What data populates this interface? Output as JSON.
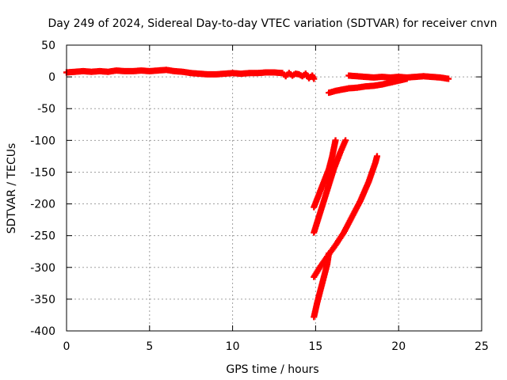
{
  "chart_data": {
    "type": "scatter",
    "title": "Day 249 of 2024, Sidereal Day-to-day VTEC variation (SDTVAR) for receiver cnvn",
    "xlabel": "GPS time / hours",
    "ylabel": "SDTVAR / TECUs",
    "xlim": [
      0,
      25
    ],
    "ylim": [
      -400,
      50
    ],
    "x_ticks": [
      0,
      5,
      10,
      15,
      20,
      25
    ],
    "y_ticks": [
      50,
      0,
      -50,
      -100,
      -150,
      -200,
      -250,
      -300,
      -350,
      -400
    ],
    "x_tick_labels": [
      "0",
      "5",
      "10",
      "15",
      "20",
      "25"
    ],
    "y_tick_labels": [
      "50",
      "0",
      "-50",
      "-100",
      "-150",
      "-200",
      "-250",
      "-300",
      "-350",
      "-400"
    ],
    "grid": true,
    "legend": "none",
    "marker_color": "#ff0000",
    "series": [
      {
        "points": [
          [
            0.0,
            7
          ],
          [
            0.5,
            8
          ],
          [
            1.0,
            9
          ],
          [
            1.5,
            8
          ],
          [
            2.0,
            9
          ],
          [
            2.5,
            8
          ],
          [
            3.0,
            10
          ],
          [
            3.5,
            9
          ],
          [
            4.0,
            9
          ],
          [
            4.5,
            10
          ],
          [
            5.0,
            9
          ],
          [
            5.5,
            10
          ],
          [
            6.0,
            11
          ],
          [
            6.5,
            9
          ],
          [
            7.0,
            8
          ],
          [
            7.5,
            6
          ],
          [
            8.0,
            5
          ],
          [
            8.5,
            4
          ],
          [
            9.0,
            4
          ],
          [
            9.5,
            5
          ],
          [
            10.0,
            6
          ],
          [
            10.5,
            5
          ],
          [
            11.0,
            6
          ],
          [
            11.5,
            6
          ],
          [
            12.0,
            7
          ],
          [
            12.5,
            7
          ],
          [
            13.0,
            6
          ],
          [
            13.2,
            1
          ],
          [
            13.4,
            6
          ],
          [
            13.6,
            2
          ],
          [
            13.8,
            5
          ],
          [
            14.0,
            4
          ],
          [
            14.2,
            1
          ],
          [
            14.4,
            5
          ],
          [
            14.6,
            -2
          ],
          [
            14.8,
            2
          ],
          [
            14.9,
            -3
          ]
        ]
      },
      {
        "points": [
          [
            15.8,
            -25
          ],
          [
            16.2,
            -22
          ],
          [
            16.6,
            -20
          ],
          [
            17.0,
            -18
          ],
          [
            17.5,
            -17
          ],
          [
            18.0,
            -15
          ],
          [
            18.5,
            -14
          ],
          [
            19.0,
            -12
          ],
          [
            19.5,
            -9
          ],
          [
            20.0,
            -6
          ],
          [
            20.5,
            -3
          ]
        ]
      },
      {
        "points": [
          [
            17.0,
            2
          ],
          [
            17.5,
            1
          ],
          [
            18.0,
            0
          ],
          [
            18.5,
            -1
          ],
          [
            19.0,
            0
          ],
          [
            19.5,
            -1
          ],
          [
            20.0,
            0
          ],
          [
            20.5,
            -1
          ],
          [
            21.0,
            0
          ],
          [
            21.5,
            1
          ],
          [
            22.0,
            0
          ],
          [
            22.5,
            -1
          ],
          [
            23.0,
            -3
          ]
        ]
      },
      {
        "points": [
          [
            14.9,
            -205
          ],
          [
            15.2,
            -185
          ],
          [
            15.5,
            -165
          ],
          [
            15.8,
            -145
          ],
          [
            16.0,
            -125
          ],
          [
            16.2,
            -100
          ]
        ]
      },
      {
        "points": [
          [
            14.9,
            -245
          ],
          [
            15.2,
            -220
          ],
          [
            15.5,
            -195
          ],
          [
            15.8,
            -170
          ],
          [
            16.1,
            -145
          ],
          [
            16.5,
            -118
          ],
          [
            16.8,
            -100
          ]
        ]
      },
      {
        "points": [
          [
            14.9,
            -315
          ],
          [
            15.3,
            -298
          ],
          [
            15.7,
            -283
          ],
          [
            16.2,
            -265
          ],
          [
            16.7,
            -245
          ],
          [
            17.2,
            -220
          ],
          [
            17.7,
            -195
          ],
          [
            18.2,
            -165
          ],
          [
            18.6,
            -135
          ],
          [
            18.7,
            -125
          ]
        ]
      },
      {
        "points": [
          [
            14.9,
            -378
          ],
          [
            15.1,
            -355
          ],
          [
            15.3,
            -335
          ],
          [
            15.5,
            -315
          ],
          [
            15.7,
            -295
          ],
          [
            15.8,
            -278
          ]
        ]
      }
    ]
  }
}
